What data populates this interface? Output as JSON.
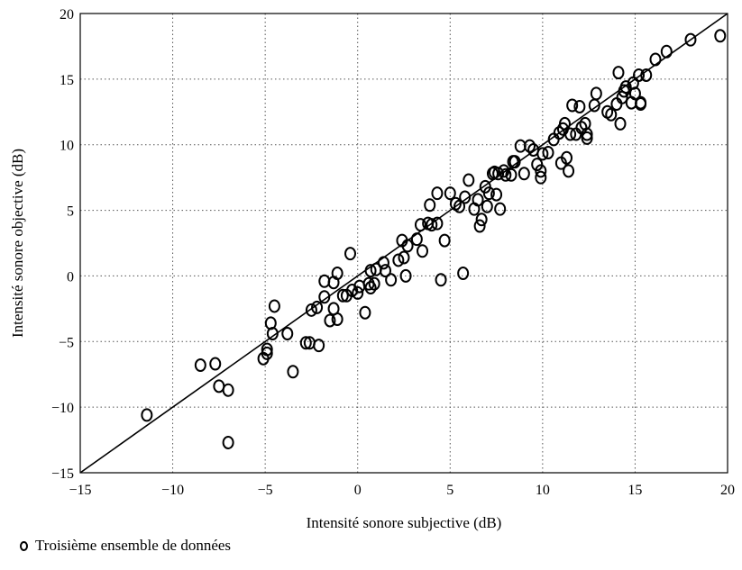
{
  "chart_data": {
    "type": "scatter",
    "xlabel": "Intensité sonore subjective (dB)",
    "ylabel": "Intensité sonore objective (dB)",
    "xlim": [
      -15,
      20
    ],
    "ylim": [
      -15,
      20
    ],
    "xticks": [
      -15,
      -10,
      -5,
      0,
      5,
      10,
      15,
      20
    ],
    "yticks": [
      -15,
      -10,
      -5,
      0,
      5,
      10,
      15,
      20
    ],
    "xtick_labels": [
      "−15",
      "−10",
      "−5",
      "0",
      "5",
      "10",
      "15",
      "20"
    ],
    "ytick_labels": [
      "−15",
      "−10",
      "−5",
      "0",
      "5",
      "10",
      "15",
      "20"
    ],
    "grid": true,
    "reference_line": {
      "x": [
        -15,
        20
      ],
      "y": [
        -15,
        20
      ]
    },
    "legend": {
      "position": "bottom-left",
      "label": "Troisième ensemble de données"
    },
    "series": [
      {
        "name": "Troisième ensemble de données",
        "marker": "open-circle",
        "points": [
          [
            -11.4,
            -10.6
          ],
          [
            -8.5,
            -6.8
          ],
          [
            -7.7,
            -6.7
          ],
          [
            -7.5,
            -8.4
          ],
          [
            -7.0,
            -8.7
          ],
          [
            -7.0,
            -12.7
          ],
          [
            -5.1,
            -6.3
          ],
          [
            -4.9,
            -5.6
          ],
          [
            -4.9,
            -5.9
          ],
          [
            -4.7,
            -3.6
          ],
          [
            -4.6,
            -4.4
          ],
          [
            -4.5,
            -2.3
          ],
          [
            -3.8,
            -4.4
          ],
          [
            -3.5,
            -7.3
          ],
          [
            -2.8,
            -5.1
          ],
          [
            -2.6,
            -5.1
          ],
          [
            -2.5,
            -2.6
          ],
          [
            -2.2,
            -2.4
          ],
          [
            -2.1,
            -5.3
          ],
          [
            -1.8,
            -1.6
          ],
          [
            -1.8,
            -0.4
          ],
          [
            -1.5,
            -3.4
          ],
          [
            -1.3,
            -2.5
          ],
          [
            -1.3,
            -0.5
          ],
          [
            -1.1,
            0.2
          ],
          [
            -1.1,
            -3.3
          ],
          [
            -0.8,
            -1.5
          ],
          [
            -0.6,
            -1.5
          ],
          [
            -0.4,
            1.7
          ],
          [
            -0.3,
            -1.1
          ],
          [
            0.0,
            -1.3
          ],
          [
            0.1,
            -0.8
          ],
          [
            0.4,
            -2.8
          ],
          [
            0.6,
            -0.6
          ],
          [
            0.7,
            0.4
          ],
          [
            0.7,
            -0.9
          ],
          [
            0.9,
            -0.6
          ],
          [
            1.0,
            0.5
          ],
          [
            1.4,
            1.0
          ],
          [
            1.5,
            0.4
          ],
          [
            1.8,
            -0.3
          ],
          [
            2.2,
            1.2
          ],
          [
            2.4,
            2.7
          ],
          [
            2.5,
            1.4
          ],
          [
            2.6,
            0.0
          ],
          [
            2.7,
            2.3
          ],
          [
            3.2,
            2.8
          ],
          [
            3.4,
            3.9
          ],
          [
            3.5,
            1.9
          ],
          [
            3.8,
            4.0
          ],
          [
            3.9,
            5.4
          ],
          [
            4.0,
            3.9
          ],
          [
            4.3,
            4.0
          ],
          [
            4.3,
            6.3
          ],
          [
            4.5,
            -0.3
          ],
          [
            4.7,
            2.7
          ],
          [
            5.0,
            6.3
          ],
          [
            5.3,
            5.5
          ],
          [
            5.5,
            5.3
          ],
          [
            5.7,
            0.2
          ],
          [
            5.8,
            6.0
          ],
          [
            6.0,
            7.3
          ],
          [
            6.3,
            5.1
          ],
          [
            6.5,
            5.8
          ],
          [
            6.6,
            3.8
          ],
          [
            6.7,
            4.3
          ],
          [
            6.9,
            6.8
          ],
          [
            7.0,
            5.3
          ],
          [
            7.1,
            6.3
          ],
          [
            7.3,
            7.8
          ],
          [
            7.4,
            7.9
          ],
          [
            7.5,
            6.2
          ],
          [
            7.6,
            7.8
          ],
          [
            7.7,
            5.1
          ],
          [
            7.9,
            8.0
          ],
          [
            8.0,
            7.7
          ],
          [
            8.3,
            7.7
          ],
          [
            8.4,
            8.7
          ],
          [
            8.5,
            8.7
          ],
          [
            8.8,
            9.9
          ],
          [
            9.0,
            7.8
          ],
          [
            9.3,
            9.9
          ],
          [
            9.5,
            9.6
          ],
          [
            9.7,
            8.5
          ],
          [
            9.9,
            8.0
          ],
          [
            9.9,
            7.5
          ],
          [
            10.0,
            9.3
          ],
          [
            10.3,
            9.4
          ],
          [
            10.6,
            10.4
          ],
          [
            10.9,
            10.9
          ],
          [
            11.0,
            8.6
          ],
          [
            11.1,
            11.2
          ],
          [
            11.2,
            11.6
          ],
          [
            11.3,
            9.0
          ],
          [
            11.4,
            8.0
          ],
          [
            11.5,
            10.8
          ],
          [
            11.6,
            13.0
          ],
          [
            11.8,
            10.8
          ],
          [
            12.0,
            12.9
          ],
          [
            12.1,
            11.3
          ],
          [
            12.3,
            11.6
          ],
          [
            12.4,
            10.8
          ],
          [
            12.4,
            10.5
          ],
          [
            12.8,
            13.0
          ],
          [
            12.9,
            13.9
          ],
          [
            13.5,
            12.5
          ],
          [
            13.7,
            12.3
          ],
          [
            14.0,
            13.1
          ],
          [
            14.1,
            15.5
          ],
          [
            14.2,
            11.6
          ],
          [
            14.3,
            13.6
          ],
          [
            14.4,
            14.1
          ],
          [
            14.5,
            14.4
          ],
          [
            14.8,
            13.2
          ],
          [
            14.9,
            14.7
          ],
          [
            15.0,
            13.9
          ],
          [
            15.2,
            15.3
          ],
          [
            15.3,
            13.2
          ],
          [
            15.3,
            13.1
          ],
          [
            15.6,
            15.3
          ],
          [
            16.1,
            16.5
          ],
          [
            16.7,
            17.1
          ],
          [
            18.0,
            18.0
          ],
          [
            19.6,
            18.3
          ]
        ]
      }
    ]
  }
}
